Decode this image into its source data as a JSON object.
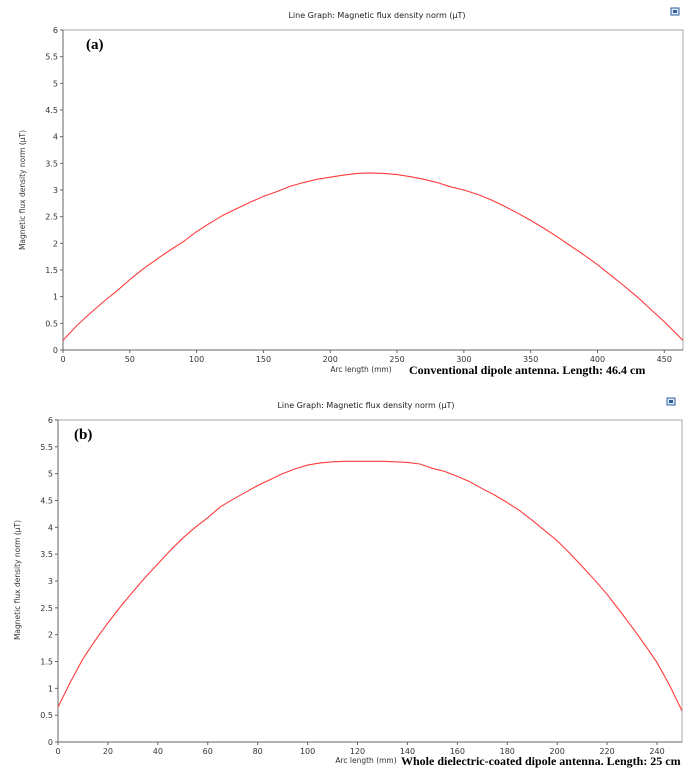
{
  "chart_data": [
    {
      "type": "line",
      "panel_label": "(a)",
      "title": "Line Graph: Magnetic flux density norm (µT)",
      "xlabel": "Arc length (mm)",
      "ylabel": "Magnetic flux density norm (µT)",
      "caption": "Conventional dipole antenna. Length: 46.4 cm",
      "xlim": [
        0,
        464
      ],
      "ylim": [
        0,
        6
      ],
      "xticks": [
        0,
        50,
        100,
        150,
        200,
        250,
        300,
        350,
        400,
        450
      ],
      "yticks": [
        0,
        0.5,
        1,
        1.5,
        2,
        2.5,
        3,
        3.5,
        4,
        4.5,
        5,
        5.5,
        6
      ],
      "grid": true,
      "series_color": "#ff3b3b",
      "series": [
        {
          "x": [
            0,
            10,
            20,
            30,
            40,
            50,
            60,
            70,
            80,
            90,
            100,
            110,
            120,
            130,
            140,
            150,
            160,
            170,
            180,
            190,
            200,
            210,
            220,
            230,
            240,
            250,
            260,
            270,
            280,
            290,
            300,
            310,
            320,
            330,
            340,
            350,
            360,
            370,
            380,
            390,
            400,
            410,
            420,
            430,
            440,
            450,
            464
          ],
          "y": [
            0.18,
            0.45,
            0.68,
            0.9,
            1.1,
            1.32,
            1.52,
            1.7,
            1.87,
            2.03,
            2.22,
            2.38,
            2.53,
            2.65,
            2.77,
            2.88,
            2.97,
            3.07,
            3.14,
            3.2,
            3.24,
            3.28,
            3.31,
            3.32,
            3.31,
            3.29,
            3.25,
            3.2,
            3.14,
            3.06,
            3.0,
            2.92,
            2.82,
            2.7,
            2.57,
            2.43,
            2.28,
            2.12,
            1.95,
            1.78,
            1.6,
            1.4,
            1.2,
            0.99,
            0.76,
            0.53,
            0.18
          ]
        }
      ]
    },
    {
      "type": "line",
      "panel_label": "(b)",
      "title": "Line Graph: Magnetic flux density norm (µT)",
      "xlabel": "Arc length (mm)",
      "ylabel": "Magnetic flux density norm (µT)",
      "caption": "Whole dielectric-coated dipole antenna. Length: 25 cm",
      "xlim": [
        0,
        250
      ],
      "ylim": [
        0,
        6
      ],
      "xticks": [
        0,
        20,
        40,
        60,
        80,
        100,
        120,
        140,
        160,
        180,
        200,
        220,
        240
      ],
      "yticks": [
        0,
        0.5,
        1,
        1.5,
        2,
        2.5,
        3,
        3.5,
        4,
        4.5,
        5,
        5.5,
        6
      ],
      "grid": true,
      "series_color": "#ff3b3b",
      "series": [
        {
          "x": [
            0,
            5,
            10,
            15,
            20,
            25,
            30,
            35,
            40,
            45,
            50,
            55,
            60,
            65,
            70,
            75,
            80,
            85,
            90,
            95,
            100,
            105,
            110,
            115,
            120,
            125,
            130,
            135,
            140,
            145,
            150,
            155,
            160,
            165,
            170,
            175,
            180,
            185,
            190,
            195,
            200,
            205,
            210,
            215,
            220,
            225,
            230,
            235,
            240,
            245,
            250
          ],
          "y": [
            0.65,
            1.12,
            1.55,
            1.9,
            2.22,
            2.52,
            2.8,
            3.07,
            3.32,
            3.57,
            3.8,
            4.0,
            4.18,
            4.38,
            4.52,
            4.65,
            4.78,
            4.89,
            5.0,
            5.09,
            5.16,
            5.2,
            5.22,
            5.23,
            5.23,
            5.23,
            5.23,
            5.22,
            5.21,
            5.18,
            5.1,
            5.04,
            4.95,
            4.85,
            4.72,
            4.6,
            4.46,
            4.31,
            4.13,
            3.94,
            3.75,
            3.52,
            3.27,
            3.02,
            2.75,
            2.45,
            2.14,
            1.82,
            1.48,
            1.06,
            0.58
          ]
        }
      ]
    }
  ]
}
